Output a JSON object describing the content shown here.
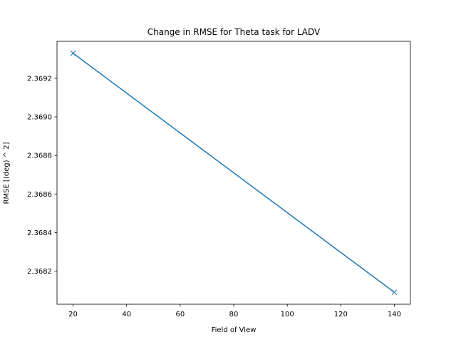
{
  "chart_data": {
    "type": "line",
    "title": "Change in RMSE for Theta task for LADV",
    "xlabel": "Field of View",
    "ylabel": "RMSE [(deg) ^ 2]",
    "x": [
      20,
      140
    ],
    "series": [
      {
        "values": [
          2.36933,
          2.36809
        ],
        "marker": "x",
        "color": "#1f77b4"
      }
    ],
    "xlim": [
      14,
      146
    ],
    "ylim": [
      2.368028,
      2.369392
    ],
    "xticks": [
      20,
      40,
      60,
      80,
      100,
      120,
      140
    ],
    "xtick_labels": [
      "20",
      "40",
      "60",
      "80",
      "100",
      "120",
      "140"
    ],
    "yticks": [
      2.3682,
      2.3684,
      2.3686,
      2.3688,
      2.369,
      2.3692
    ],
    "ytick_labels": [
      "2.3682",
      "2.3684",
      "2.3686",
      "2.3688",
      "2.3690",
      "2.3692"
    ],
    "grid": false,
    "legend": "none"
  }
}
